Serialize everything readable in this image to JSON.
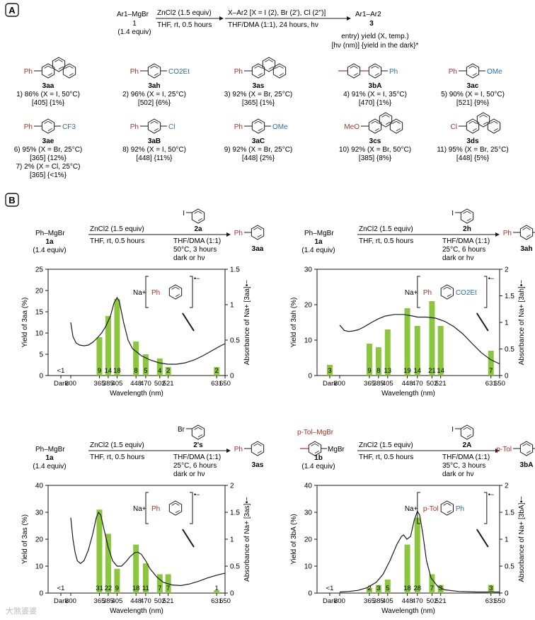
{
  "panel_labels": [
    "A",
    "B"
  ],
  "scheme_a": {
    "reagent1": "Ar1–MgBr",
    "reagent1_id": "1",
    "reagent1_equiv": "(1.4 equiv)",
    "step1_top": "ZnCl2 (1.5 equiv)",
    "step1_bottom": "THF, rt, 0.5 hours",
    "step2_top": "X–Ar2 [X = I (2), Br (2'), Cl (2'')]",
    "step2_bottom": "THF/DMA (1:1), 24 hours, hν",
    "product": "Ar1–Ar2",
    "product_id": "3",
    "legend_line1": "entry) yield (X, temp.)",
    "legend_line2": "[hν (nm)] {yield in the dark}*"
  },
  "compounds": [
    {
      "id": "3aa",
      "left": "Ph",
      "right": "",
      "line1": "1) 86% (X = I, 50°C)",
      "line2": "[405] {1%}"
    },
    {
      "id": "3ah",
      "left": "Ph",
      "right": "CO2Et",
      "line1": "2) 96% (X = I, 25°C)",
      "line2": "[502] {6%}"
    },
    {
      "id": "3as",
      "left": "Ph",
      "right": "",
      "line1": "3) 92% (X = Br, 25°C)",
      "line2": "[365] {1%}"
    },
    {
      "id": "3bA",
      "left": "",
      "right": "Ph",
      "line1": "4) 91% (X = I, 35°C)",
      "line2": "[470] {1%}"
    },
    {
      "id": "3ac",
      "left": "Ph",
      "right": "OMe",
      "line1": "5) 90% (X = I, 50°C)",
      "line2": "[521] {9%}"
    },
    {
      "id": "3ae",
      "left": "Ph",
      "right": "CF3",
      "line1": "6) 95% (X = Br, 25°C)",
      "line2": "[365] {12%}",
      "line3": "7) 2% (X = Cl, 25°C)",
      "line4": "[365] {<1%}"
    },
    {
      "id": "3aB",
      "left": "Ph",
      "right": "Cl",
      "line1": "8) 92% (X = I, 50°C)",
      "line2": "[448] {11%}"
    },
    {
      "id": "3aC",
      "left": "Ph",
      "right": "OMe",
      "line1": "9) 92% (X = Br, 25°C)",
      "line2": "[448] {2%}"
    },
    {
      "id": "3cs",
      "left": "MeO",
      "right": "",
      "line1": "10) 92% (X = Br, 50°C)",
      "line2": "[385] {8%}"
    },
    {
      "id": "3ds",
      "left": "Cl",
      "right": "",
      "line1": "11) 95% (X = Br, 25°C)",
      "line2": "[448] {5%}"
    }
  ],
  "schemes_b": [
    {
      "reagent": "Ph–MgBr",
      "reagent_id": "1a",
      "reagent_equiv": "(1.4 equiv)",
      "s1_top": "ZnCl2 (1.5 equiv)",
      "s1_bottom": "THF, rt, 0.5 hours",
      "halide_atom": "I",
      "halide_id": "2a",
      "cond1": "THF/DMA (1:1)",
      "cond2": "50°C, 3 hours",
      "cond3": "dark or hν",
      "product_id": "3aa",
      "product_left": "Ph",
      "product_right": ""
    },
    {
      "reagent": "Ph–MgBr",
      "reagent_id": "1a",
      "reagent_equiv": "(1.4 equiv)",
      "s1_top": "ZnCl2 (1.5 equiv)",
      "s1_bottom": "THF, rt, 0.5 hours",
      "halide_atom": "I",
      "halide_id": "2h",
      "cond1": "THF/DMA (1:1)",
      "cond2": "25°C, 6 hours",
      "cond3": "dark or hν",
      "product_id": "3ah",
      "product_left": "Ph",
      "product_right": "CO2Et"
    },
    {
      "reagent": "Ph–MgBr",
      "reagent_id": "1a",
      "reagent_equiv": "(1.4 equiv)",
      "s1_top": "ZnCl2 (1.5 equiv)",
      "s1_bottom": "THF, rt, 0.5 hours",
      "halide_atom": "Br",
      "halide_id": "2's",
      "cond1": "THF/DMA (1:1)",
      "cond2": "25°C, 6 hours",
      "cond3": "dark or hν",
      "product_id": "3as",
      "product_left": "Ph",
      "product_right": ""
    },
    {
      "reagent": "MgBr",
      "reagent_id": "1b",
      "reagent_equiv": "(1.4 equiv)",
      "reagent_prefix": "p-Tol–MgBr",
      "s1_top": "ZnCl2 (1.5 equiv)",
      "s1_bottom": "THF, rt, 0.5 hours",
      "halide_atom": "I",
      "halide_id": "2A",
      "cond1": "THF/DMA (1:1)",
      "cond2": "35°C, 3 hours",
      "cond3": "dark or hν",
      "product_id": "3bA",
      "product_left": "p-Tol",
      "product_right": "Ph"
    }
  ],
  "chart_data": [
    {
      "type": "bar",
      "xlabel": "Wavelength (nm)",
      "ylabel": "Yield of 3aa (%)",
      "ylabel2": "Absorbance of Na+ [3aa]•−",
      "ylim": [
        0,
        25
      ],
      "yticks": [
        0,
        5,
        10,
        15,
        20,
        25
      ],
      "y2lim": [
        0,
        1.5
      ],
      "y2ticks": [
        "0",
        "0.5",
        "1",
        "1.5"
      ],
      "categories": [
        "Dark",
        "365",
        "385",
        "405",
        "448",
        "470",
        "502",
        "521",
        "631"
      ],
      "values": [
        0,
        9,
        14,
        18,
        8,
        5,
        4,
        2,
        2
      ],
      "value_labels": [
        "<1",
        "9",
        "14",
        "18",
        "8",
        "5",
        "4",
        "2",
        "2"
      ],
      "xticks": [
        "Dark",
        "300",
        "365",
        "385",
        "405",
        "448",
        "470",
        "502",
        "521",
        "631",
        "650"
      ],
      "absorbance": [
        [
          300,
          0.75
        ],
        [
          305,
          0.55
        ],
        [
          312,
          0.46
        ],
        [
          320,
          0.43
        ],
        [
          330,
          0.42
        ],
        [
          340,
          0.43
        ],
        [
          350,
          0.47
        ],
        [
          360,
          0.53
        ],
        [
          370,
          0.6
        ],
        [
          380,
          0.7
        ],
        [
          390,
          0.84
        ],
        [
          398,
          1.02
        ],
        [
          405,
          1.1
        ],
        [
          410,
          1.05
        ],
        [
          420,
          0.75
        ],
        [
          430,
          0.5
        ],
        [
          440,
          0.38
        ],
        [
          460,
          0.28
        ],
        [
          480,
          0.22
        ],
        [
          500,
          0.18
        ],
        [
          520,
          0.16
        ],
        [
          540,
          0.16
        ],
        [
          560,
          0.18
        ],
        [
          580,
          0.22
        ],
        [
          600,
          0.28
        ],
        [
          620,
          0.35
        ],
        [
          640,
          0.42
        ],
        [
          650,
          0.45
        ]
      ],
      "radical_left": "Na+",
      "radical_sub": "Ph",
      "radical_charge": "•−"
    },
    {
      "type": "bar",
      "xlabel": "Wavelength (nm)",
      "ylabel": "Yield of 3ah (%)",
      "ylabel2": "Absorbance of Na+ [3ah]•−",
      "ylim": [
        0,
        30
      ],
      "yticks": [
        0,
        10,
        20,
        30
      ],
      "y2lim": [
        0,
        2
      ],
      "y2ticks": [
        "0",
        "0.5",
        "1",
        "1.5",
        "2"
      ],
      "categories": [
        "Dark",
        "365",
        "385",
        "405",
        "448",
        "470",
        "502",
        "521",
        "631"
      ],
      "values": [
        3,
        9,
        8,
        13,
        19,
        14,
        21,
        14,
        7
      ],
      "value_labels": [
        "3",
        "9",
        "8",
        "13",
        "19",
        "14",
        "21",
        "14",
        "7"
      ],
      "xticks": [
        "Dark",
        "300",
        "365",
        "385",
        "405",
        "448",
        "470",
        "502",
        "521",
        "631",
        "650"
      ],
      "absorbance": [
        [
          300,
          0.95
        ],
        [
          310,
          0.85
        ],
        [
          320,
          0.83
        ],
        [
          330,
          0.84
        ],
        [
          340,
          0.86
        ],
        [
          350,
          0.9
        ],
        [
          360,
          0.95
        ],
        [
          370,
          1.0
        ],
        [
          385,
          1.07
        ],
        [
          400,
          1.12
        ],
        [
          420,
          1.15
        ],
        [
          440,
          1.15
        ],
        [
          460,
          1.12
        ],
        [
          470,
          1.1
        ],
        [
          490,
          1.1
        ],
        [
          510,
          1.08
        ],
        [
          530,
          1.02
        ],
        [
          550,
          0.92
        ],
        [
          570,
          0.78
        ],
        [
          590,
          0.6
        ],
        [
          610,
          0.43
        ],
        [
          630,
          0.3
        ],
        [
          650,
          0.22
        ]
      ],
      "radical_left": "Na+",
      "radical_sub": "Ph",
      "radical_right": "CO2Et",
      "radical_charge": "•−"
    },
    {
      "type": "bar",
      "xlabel": "Wavelength (nm)",
      "ylabel": "Yield of 3as (%)",
      "ylabel2": "Absorbance of Na+ [3as]•−",
      "ylim": [
        0,
        40
      ],
      "yticks": [
        0,
        10,
        20,
        30,
        40
      ],
      "y2lim": [
        0,
        2
      ],
      "y2ticks": [
        "0",
        "0.5",
        "1",
        "1.5",
        "2"
      ],
      "categories": [
        "Dark",
        "365",
        "385",
        "405",
        "448",
        "470",
        "502",
        "521",
        "631"
      ],
      "values": [
        0,
        31,
        22,
        9,
        18,
        11,
        7,
        7,
        1
      ],
      "value_labels": [
        "<1",
        "31",
        "22",
        "9",
        "18",
        "11",
        "7",
        "7",
        "1"
      ],
      "xticks": [
        "Dark",
        "300",
        "365",
        "385",
        "405",
        "448",
        "470",
        "502",
        "521",
        "631",
        "650"
      ],
      "absorbance": [
        [
          300,
          1.4
        ],
        [
          305,
          1.0
        ],
        [
          310,
          0.75
        ],
        [
          315,
          0.6
        ],
        [
          322,
          0.55
        ],
        [
          330,
          0.6
        ],
        [
          340,
          0.8
        ],
        [
          350,
          1.1
        ],
        [
          358,
          1.4
        ],
        [
          363,
          1.5
        ],
        [
          368,
          1.45
        ],
        [
          375,
          1.2
        ],
        [
          385,
          0.85
        ],
        [
          395,
          0.6
        ],
        [
          405,
          0.5
        ],
        [
          415,
          0.5
        ],
        [
          425,
          0.58
        ],
        [
          435,
          0.68
        ],
        [
          445,
          0.75
        ],
        [
          452,
          0.76
        ],
        [
          460,
          0.72
        ],
        [
          470,
          0.6
        ],
        [
          480,
          0.45
        ],
        [
          495,
          0.3
        ],
        [
          510,
          0.2
        ],
        [
          530,
          0.15
        ],
        [
          550,
          0.14
        ],
        [
          570,
          0.17
        ],
        [
          590,
          0.22
        ],
        [
          610,
          0.28
        ],
        [
          630,
          0.33
        ],
        [
          650,
          0.37
        ]
      ],
      "radical_left": "Na+",
      "radical_sub": "Ph",
      "radical_charge": "•−"
    },
    {
      "type": "bar",
      "xlabel": "Wavelength (nm)",
      "ylabel": "Yield of 3bA (%)",
      "ylabel2": "Absorbance of Na+ [3bA]•−",
      "ylim": [
        0,
        40
      ],
      "yticks": [
        0,
        10,
        20,
        30,
        40
      ],
      "y2lim": [
        0,
        2
      ],
      "y2ticks": [
        "0",
        "0.5",
        "1",
        "1.5",
        "2"
      ],
      "categories": [
        "Dark",
        "365",
        "385",
        "405",
        "448",
        "470",
        "502",
        "521",
        "631"
      ],
      "values": [
        0,
        2,
        3,
        5,
        18,
        28,
        7,
        3,
        3
      ],
      "value_labels": [
        "<1",
        "2",
        "3",
        "5",
        "18",
        "28",
        "7",
        "3",
        "3"
      ],
      "xticks": [
        "Dark",
        "300",
        "365",
        "385",
        "405",
        "448",
        "470",
        "502",
        "521",
        "631",
        "650"
      ],
      "absorbance": [
        [
          300,
          0.02
        ],
        [
          320,
          0.03
        ],
        [
          340,
          0.05
        ],
        [
          360,
          0.1
        ],
        [
          380,
          0.2
        ],
        [
          395,
          0.35
        ],
        [
          410,
          0.6
        ],
        [
          425,
          0.9
        ],
        [
          435,
          1.05
        ],
        [
          440,
          1.08
        ],
        [
          447,
          1.0
        ],
        [
          455,
          1.05
        ],
        [
          463,
          1.35
        ],
        [
          470,
          1.52
        ],
        [
          475,
          1.45
        ],
        [
          482,
          1.1
        ],
        [
          490,
          0.6
        ],
        [
          500,
          0.28
        ],
        [
          515,
          0.12
        ],
        [
          530,
          0.06
        ],
        [
          560,
          0.03
        ],
        [
          600,
          0.02
        ],
        [
          650,
          0.02
        ]
      ],
      "radical_left": "Na+",
      "radical_sub": "p-Tol",
      "radical_right": "Ph",
      "radical_charge": "•−"
    }
  ],
  "watermark": "大煞婆婆"
}
